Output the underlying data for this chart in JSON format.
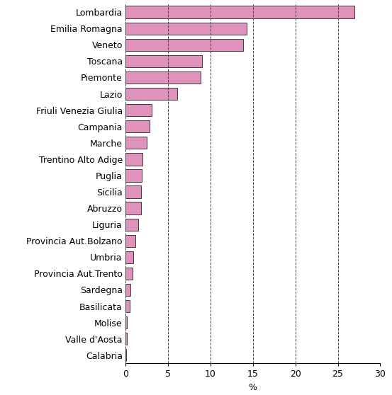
{
  "categories": [
    "Lombardia",
    "Emilia Romagna",
    "Veneto",
    "Toscana",
    "Piemonte",
    "Lazio",
    "Friuli Venezia Giulia",
    "Campania",
    "Marche",
    "Trentino Alto Adige",
    "Puglia",
    "Sicilia",
    "Abruzzo",
    "Liguria",
    "Provincia Aut.Bolzano",
    "Umbria",
    "Provincia Aut.Trento",
    "Sardegna",
    "Basilicata",
    "Molise",
    "Valle d'Aosta",
    "Calabria"
  ],
  "values": [
    26.9759063274037,
    14.3087142535465,
    13.840351272236,
    9.02274262553479,
    8.85160999774826,
    6.09322224724161,
    3.05561810403062,
    2.82368835847782,
    2.52533213240261,
    1.98603918036478,
    1.95564062148165,
    1.87682954289574,
    1.80815131727088,
    1.51429858140059,
    1.15176761990543,
    0.883809952713353,
    0.834271560459356,
    0.60346768745778,
    0.49876154019365,
    0.208286421977032,
    0.131727088493583,
    0.10470614726413
  ],
  "bar_color": "#df93bc",
  "bar_edgecolor": "#000000",
  "xlabel": "%",
  "xlim": [
    0,
    30
  ],
  "xticks": [
    0,
    5,
    10,
    15,
    20,
    25,
    30
  ],
  "grid_color": "#444444",
  "background_color": "#ffffff",
  "bar_height": 0.75,
  "tick_fontsize": 9,
  "label_fontsize": 9,
  "figwidth": 5.53,
  "figheight": 5.58,
  "dpi": 100
}
